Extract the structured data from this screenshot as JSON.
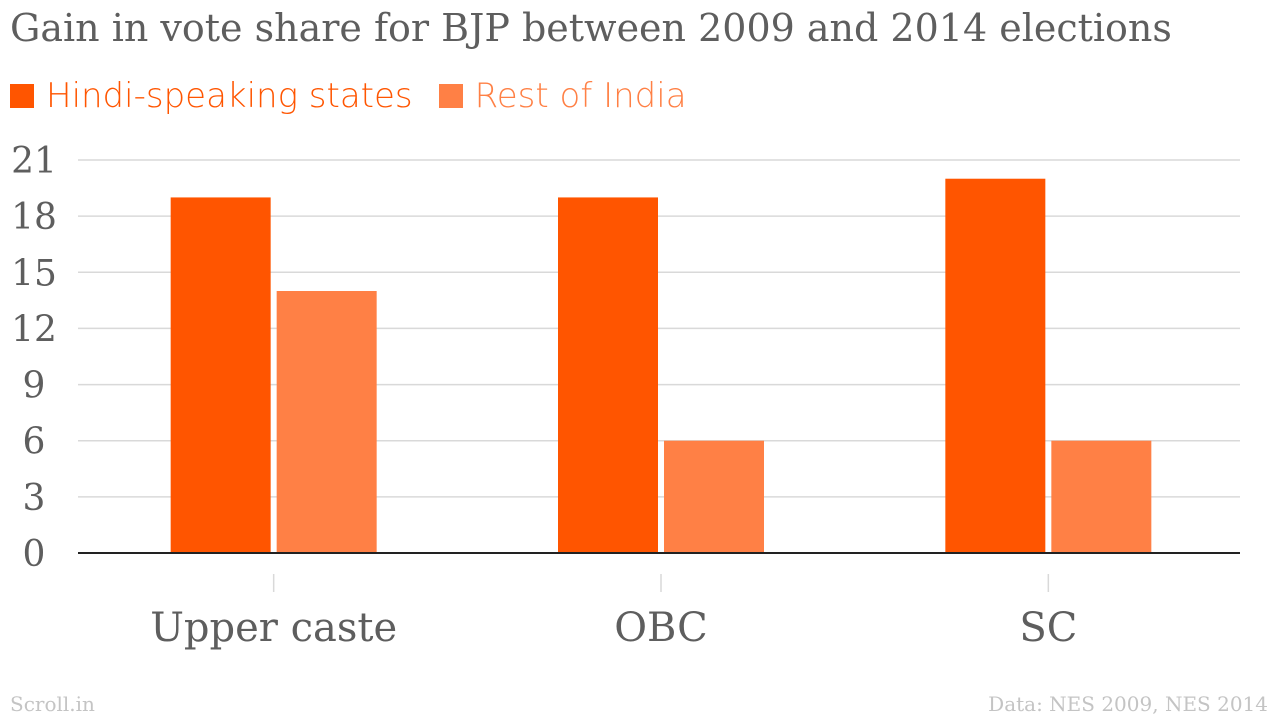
{
  "colors": {
    "series_1": "#ff5500",
    "series_2": "#ff8045",
    "title": "#5e5e5e",
    "axis_text": "#5e5e5e",
    "grid": "#d9d9d9",
    "baseline": "#222222",
    "footer": "#c4c4c4"
  },
  "chart_data": {
    "type": "bar",
    "title": "Gain in vote share for BJP between 2009 and 2014 elections",
    "categories": [
      "Upper caste",
      "OBC",
      "SC"
    ],
    "series": [
      {
        "name": "Hindi-speaking states",
        "values": [
          19,
          19,
          20
        ]
      },
      {
        "name": "Rest of India",
        "values": [
          14,
          6,
          6
        ]
      }
    ],
    "ylim": [
      0,
      21
    ],
    "yticks": [
      "0",
      "3",
      "6",
      "9",
      "12",
      "15",
      "18",
      "21"
    ],
    "xlabel": "",
    "ylabel": "",
    "grid": true,
    "legend_position": "top-left"
  },
  "footer": {
    "brand": "Scroll.in",
    "source": "Data: NES 2009, NES 2014"
  }
}
